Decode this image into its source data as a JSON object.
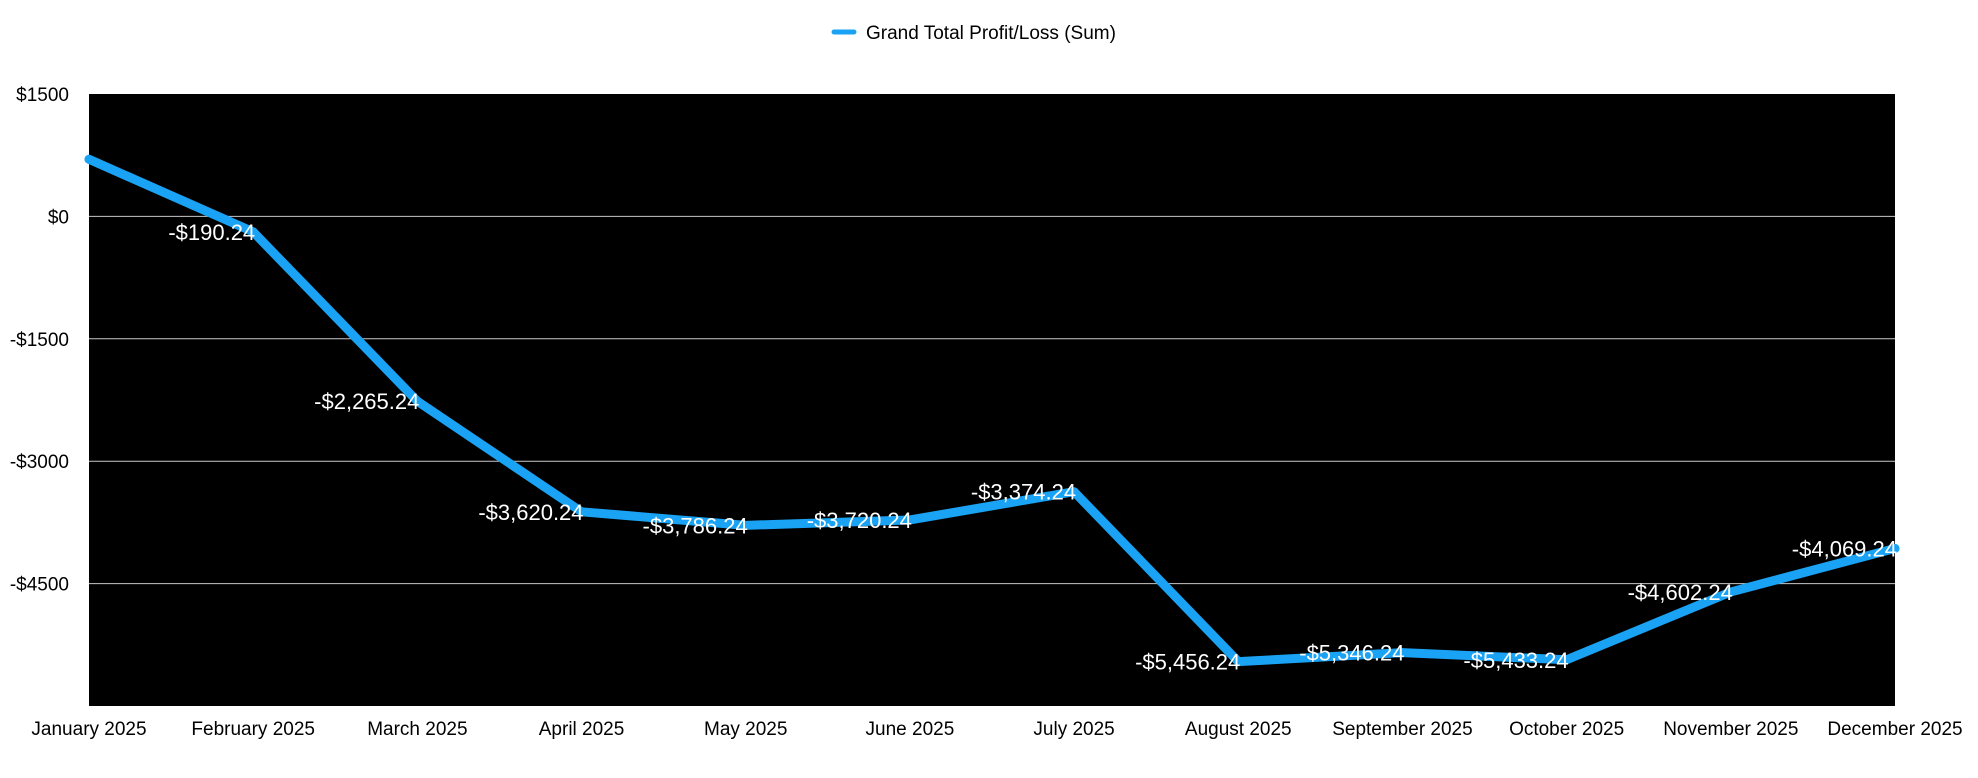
{
  "chart_data": {
    "type": "line",
    "title": "",
    "xlabel": "",
    "ylabel": "",
    "legend": {
      "position": "top-center",
      "entries": [
        "Grand Total Profit/Loss (Sum)"
      ]
    },
    "grid": true,
    "background": "#000000",
    "ylim": [
      -6000,
      1500
    ],
    "y_ticks": [
      1500,
      0,
      -1500,
      -3000,
      -4500
    ],
    "y_tick_labels": [
      "$1500",
      "$0",
      "-$1500",
      "-$3000",
      "-$4500"
    ],
    "categories": [
      "January 2025",
      "February 2025",
      "March 2025",
      "April 2025",
      "May 2025",
      "June 2025",
      "July 2025",
      "August 2025",
      "September 2025",
      "October 2025",
      "November 2025",
      "December 2025"
    ],
    "series": [
      {
        "name": "Grand Total Profit/Loss (Sum)",
        "color": "#1aa3f5",
        "values": [
          700,
          -190.24,
          -2265.24,
          -3620.24,
          -3786.24,
          -3720.24,
          -3374.24,
          -5456.24,
          -5346.24,
          -5433.24,
          -4602.24,
          -4069.24
        ],
        "labels": [
          "",
          "-$190.24",
          "-$2,265.24",
          "-$3,620.24",
          "-$3,786.24",
          "-$3,720.24",
          "-$3,374.24",
          "-$5,456.24",
          "-$5,346.24",
          "-$5,433.24",
          "-$4,602.24",
          "-$4,069.24"
        ]
      }
    ]
  }
}
